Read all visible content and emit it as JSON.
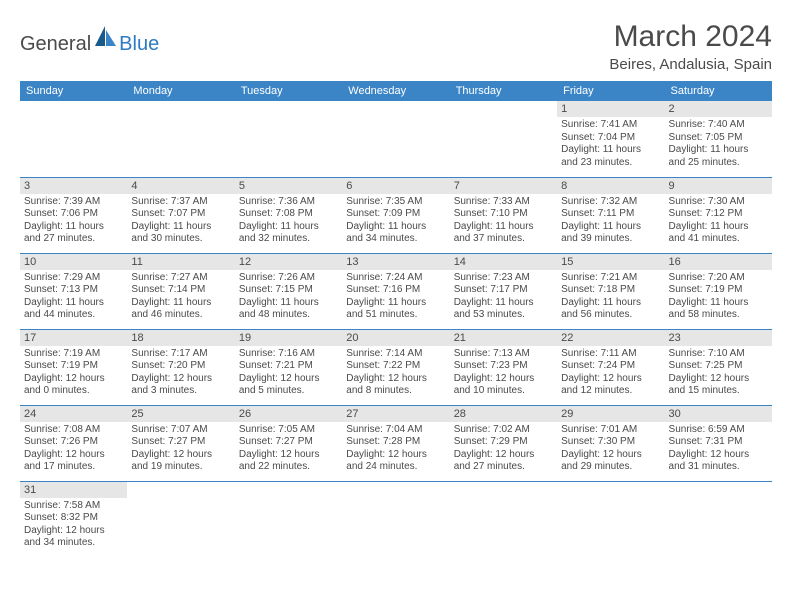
{
  "logo": {
    "general": "General",
    "blue": "Blue"
  },
  "title": "March 2024",
  "location": "Beires, Andalusia, Spain",
  "colors": {
    "header_bg": "#3b85c6",
    "header_text": "#ffffff",
    "daynum_bg": "#e6e6e6",
    "text": "#4a4a4a",
    "border": "#3b85c6"
  },
  "weekdays": [
    "Sunday",
    "Monday",
    "Tuesday",
    "Wednesday",
    "Thursday",
    "Friday",
    "Saturday"
  ],
  "weeks": [
    [
      null,
      null,
      null,
      null,
      null,
      {
        "n": "1",
        "sr": "Sunrise: 7:41 AM",
        "ss": "Sunset: 7:04 PM",
        "d1": "Daylight: 11 hours",
        "d2": "and 23 minutes."
      },
      {
        "n": "2",
        "sr": "Sunrise: 7:40 AM",
        "ss": "Sunset: 7:05 PM",
        "d1": "Daylight: 11 hours",
        "d2": "and 25 minutes."
      }
    ],
    [
      {
        "n": "3",
        "sr": "Sunrise: 7:39 AM",
        "ss": "Sunset: 7:06 PM",
        "d1": "Daylight: 11 hours",
        "d2": "and 27 minutes."
      },
      {
        "n": "4",
        "sr": "Sunrise: 7:37 AM",
        "ss": "Sunset: 7:07 PM",
        "d1": "Daylight: 11 hours",
        "d2": "and 30 minutes."
      },
      {
        "n": "5",
        "sr": "Sunrise: 7:36 AM",
        "ss": "Sunset: 7:08 PM",
        "d1": "Daylight: 11 hours",
        "d2": "and 32 minutes."
      },
      {
        "n": "6",
        "sr": "Sunrise: 7:35 AM",
        "ss": "Sunset: 7:09 PM",
        "d1": "Daylight: 11 hours",
        "d2": "and 34 minutes."
      },
      {
        "n": "7",
        "sr": "Sunrise: 7:33 AM",
        "ss": "Sunset: 7:10 PM",
        "d1": "Daylight: 11 hours",
        "d2": "and 37 minutes."
      },
      {
        "n": "8",
        "sr": "Sunrise: 7:32 AM",
        "ss": "Sunset: 7:11 PM",
        "d1": "Daylight: 11 hours",
        "d2": "and 39 minutes."
      },
      {
        "n": "9",
        "sr": "Sunrise: 7:30 AM",
        "ss": "Sunset: 7:12 PM",
        "d1": "Daylight: 11 hours",
        "d2": "and 41 minutes."
      }
    ],
    [
      {
        "n": "10",
        "sr": "Sunrise: 7:29 AM",
        "ss": "Sunset: 7:13 PM",
        "d1": "Daylight: 11 hours",
        "d2": "and 44 minutes."
      },
      {
        "n": "11",
        "sr": "Sunrise: 7:27 AM",
        "ss": "Sunset: 7:14 PM",
        "d1": "Daylight: 11 hours",
        "d2": "and 46 minutes."
      },
      {
        "n": "12",
        "sr": "Sunrise: 7:26 AM",
        "ss": "Sunset: 7:15 PM",
        "d1": "Daylight: 11 hours",
        "d2": "and 48 minutes."
      },
      {
        "n": "13",
        "sr": "Sunrise: 7:24 AM",
        "ss": "Sunset: 7:16 PM",
        "d1": "Daylight: 11 hours",
        "d2": "and 51 minutes."
      },
      {
        "n": "14",
        "sr": "Sunrise: 7:23 AM",
        "ss": "Sunset: 7:17 PM",
        "d1": "Daylight: 11 hours",
        "d2": "and 53 minutes."
      },
      {
        "n": "15",
        "sr": "Sunrise: 7:21 AM",
        "ss": "Sunset: 7:18 PM",
        "d1": "Daylight: 11 hours",
        "d2": "and 56 minutes."
      },
      {
        "n": "16",
        "sr": "Sunrise: 7:20 AM",
        "ss": "Sunset: 7:19 PM",
        "d1": "Daylight: 11 hours",
        "d2": "and 58 minutes."
      }
    ],
    [
      {
        "n": "17",
        "sr": "Sunrise: 7:19 AM",
        "ss": "Sunset: 7:19 PM",
        "d1": "Daylight: 12 hours",
        "d2": "and 0 minutes."
      },
      {
        "n": "18",
        "sr": "Sunrise: 7:17 AM",
        "ss": "Sunset: 7:20 PM",
        "d1": "Daylight: 12 hours",
        "d2": "and 3 minutes."
      },
      {
        "n": "19",
        "sr": "Sunrise: 7:16 AM",
        "ss": "Sunset: 7:21 PM",
        "d1": "Daylight: 12 hours",
        "d2": "and 5 minutes."
      },
      {
        "n": "20",
        "sr": "Sunrise: 7:14 AM",
        "ss": "Sunset: 7:22 PM",
        "d1": "Daylight: 12 hours",
        "d2": "and 8 minutes."
      },
      {
        "n": "21",
        "sr": "Sunrise: 7:13 AM",
        "ss": "Sunset: 7:23 PM",
        "d1": "Daylight: 12 hours",
        "d2": "and 10 minutes."
      },
      {
        "n": "22",
        "sr": "Sunrise: 7:11 AM",
        "ss": "Sunset: 7:24 PM",
        "d1": "Daylight: 12 hours",
        "d2": "and 12 minutes."
      },
      {
        "n": "23",
        "sr": "Sunrise: 7:10 AM",
        "ss": "Sunset: 7:25 PM",
        "d1": "Daylight: 12 hours",
        "d2": "and 15 minutes."
      }
    ],
    [
      {
        "n": "24",
        "sr": "Sunrise: 7:08 AM",
        "ss": "Sunset: 7:26 PM",
        "d1": "Daylight: 12 hours",
        "d2": "and 17 minutes."
      },
      {
        "n": "25",
        "sr": "Sunrise: 7:07 AM",
        "ss": "Sunset: 7:27 PM",
        "d1": "Daylight: 12 hours",
        "d2": "and 19 minutes."
      },
      {
        "n": "26",
        "sr": "Sunrise: 7:05 AM",
        "ss": "Sunset: 7:27 PM",
        "d1": "Daylight: 12 hours",
        "d2": "and 22 minutes."
      },
      {
        "n": "27",
        "sr": "Sunrise: 7:04 AM",
        "ss": "Sunset: 7:28 PM",
        "d1": "Daylight: 12 hours",
        "d2": "and 24 minutes."
      },
      {
        "n": "28",
        "sr": "Sunrise: 7:02 AM",
        "ss": "Sunset: 7:29 PM",
        "d1": "Daylight: 12 hours",
        "d2": "and 27 minutes."
      },
      {
        "n": "29",
        "sr": "Sunrise: 7:01 AM",
        "ss": "Sunset: 7:30 PM",
        "d1": "Daylight: 12 hours",
        "d2": "and 29 minutes."
      },
      {
        "n": "30",
        "sr": "Sunrise: 6:59 AM",
        "ss": "Sunset: 7:31 PM",
        "d1": "Daylight: 12 hours",
        "d2": "and 31 minutes."
      }
    ],
    [
      {
        "n": "31",
        "sr": "Sunrise: 7:58 AM",
        "ss": "Sunset: 8:32 PM",
        "d1": "Daylight: 12 hours",
        "d2": "and 34 minutes."
      },
      null,
      null,
      null,
      null,
      null,
      null
    ]
  ]
}
